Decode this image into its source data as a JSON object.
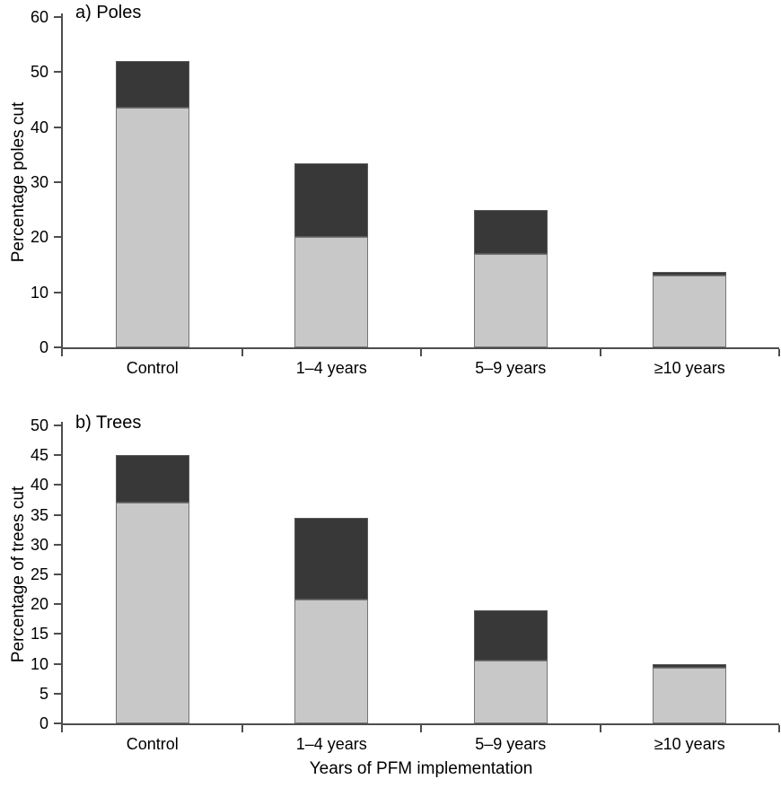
{
  "figure": {
    "xlabel": "Years of PFM implementation"
  },
  "colors": {
    "background": "#ffffff",
    "bar_light": "#c8c8c8",
    "bar_dark": "#383838",
    "bar_border": "#757575",
    "bar_dark_border": "#5a5a5a",
    "axis": "#4d4d4d",
    "text": "#000000"
  },
  "chart_data": [
    {
      "type": "bar",
      "stacked": true,
      "panel_label": "a) Poles",
      "title": "a) Poles",
      "ylabel": "Percentage poles cut",
      "xlabel": "",
      "categories": [
        "Control",
        "1–4 years",
        "5–9 years",
        "≥10 years"
      ],
      "series": [
        {
          "name": "lower-light-segment",
          "color": "#c8c8c8",
          "values": [
            43.5,
            20,
            17,
            13
          ]
        },
        {
          "name": "upper-dark-segment",
          "color": "#383838",
          "values": [
            8.5,
            13.5,
            8,
            0.7
          ]
        }
      ],
      "stack_totals": [
        52,
        33.5,
        25,
        13.7
      ],
      "ylim": [
        0,
        60
      ],
      "yticks": [
        0,
        10,
        20,
        30,
        40,
        50,
        60
      ],
      "grid": false,
      "legend": "none"
    },
    {
      "type": "bar",
      "stacked": true,
      "panel_label": "b) Trees",
      "title": "b) Trees",
      "ylabel": "Percentage of trees cut",
      "xlabel": "Years of PFM implementation",
      "categories": [
        "Control",
        "1–4 years",
        "5–9 years",
        "≥10 years"
      ],
      "series": [
        {
          "name": "lower-light-segment",
          "color": "#c8c8c8",
          "values": [
            37,
            20.8,
            10.5,
            9.3
          ]
        },
        {
          "name": "upper-dark-segment",
          "color": "#383838",
          "values": [
            8,
            13.7,
            8.5,
            0.7
          ]
        }
      ],
      "stack_totals": [
        45,
        34.5,
        19,
        10
      ],
      "ylim": [
        0,
        50
      ],
      "yticks": [
        0,
        5,
        10,
        15,
        20,
        25,
        30,
        35,
        40,
        45,
        50
      ],
      "grid": false,
      "legend": "none"
    }
  ]
}
